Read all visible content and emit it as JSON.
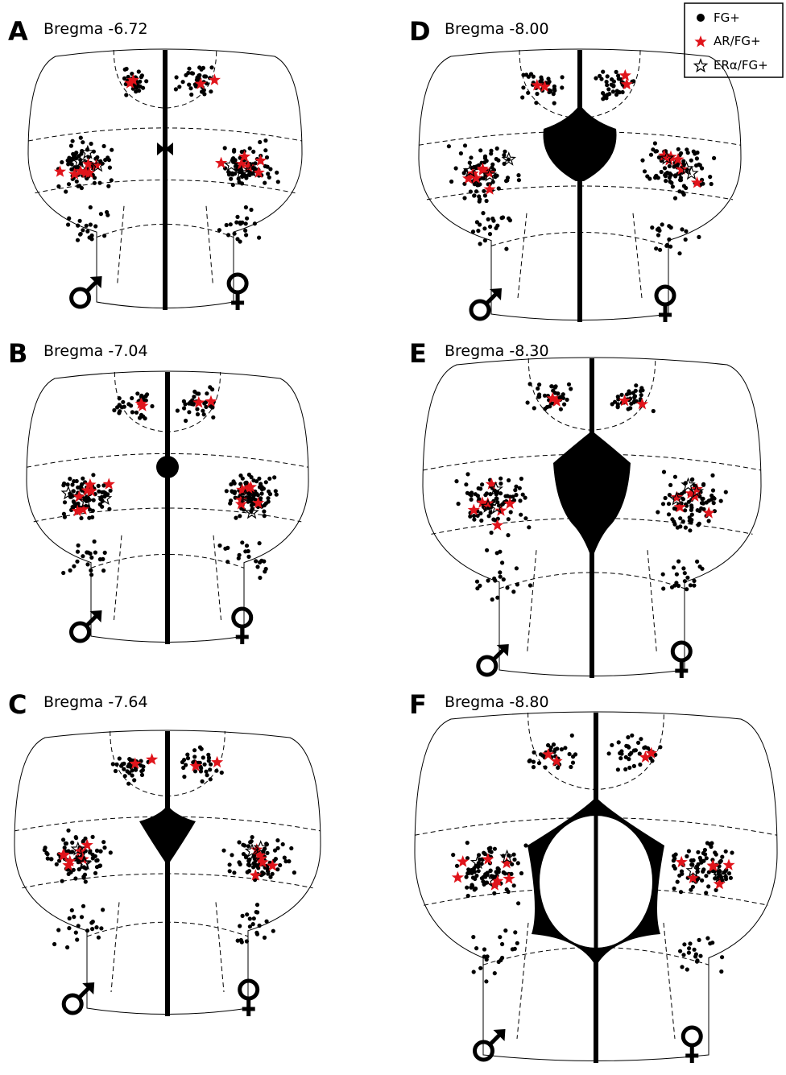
{
  "panels": [
    {
      "letter": "A",
      "label": "Bregma -6.72"
    },
    {
      "letter": "B",
      "label": "Bregma -7.04"
    },
    {
      "letter": "C",
      "label": "Bregma -7.64"
    },
    {
      "letter": "D",
      "label": "Bregma -8.00"
    },
    {
      "letter": "E",
      "label": "Bregma -8.30"
    },
    {
      "letter": "F",
      "label": "Bregma -8.80"
    }
  ],
  "legend": [
    "FG+",
    "AR/FG+",
    "ERα/FG+"
  ]
}
